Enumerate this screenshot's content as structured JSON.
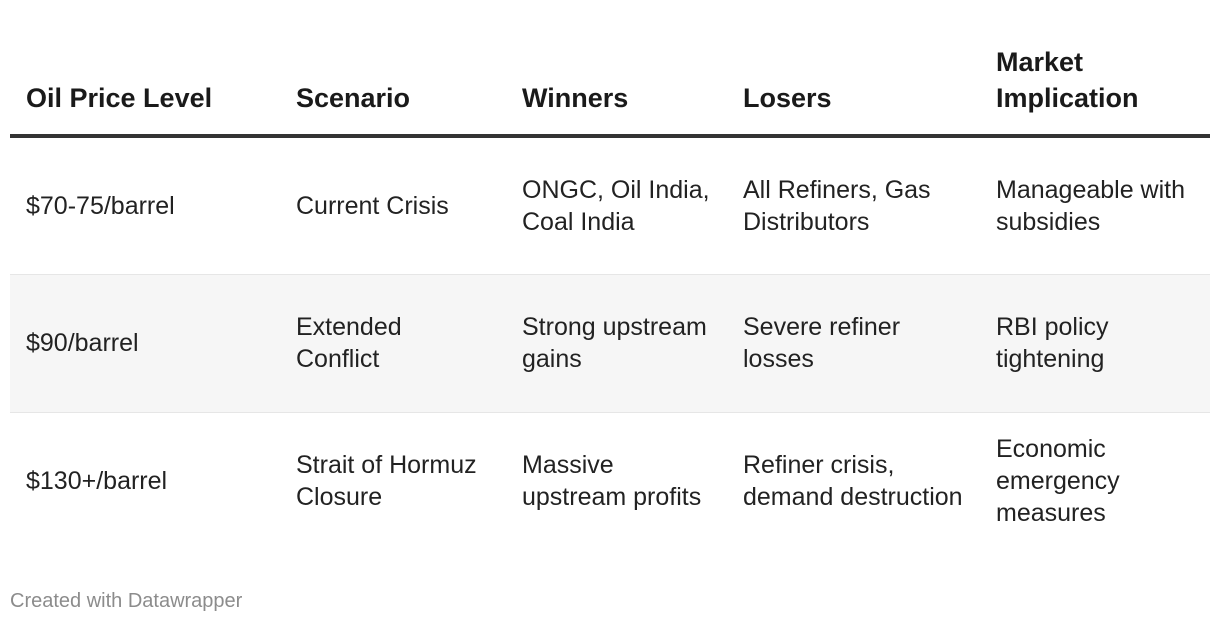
{
  "table": {
    "headers": [
      "Oil Price Level",
      "Scenario",
      "Winners",
      "Losers",
      "Market Implication"
    ],
    "rows": [
      [
        "$70-75/barrel",
        "Current Crisis",
        "ONGC, Oil India, Coal India",
        "All Refiners, Gas Distributors",
        "Manageable with subsidies"
      ],
      [
        "$90/barrel",
        "Extended Conflict",
        "Strong upstream gains",
        "Severe refiner losses",
        "RBI policy tightening"
      ],
      [
        "$130+/barrel",
        "Strait of Hormuz Closure",
        "Massive upstream profits",
        "Refiner crisis, demand destruction",
        "Economic emergency measures"
      ]
    ]
  },
  "footer": {
    "credit": "Created with Datawrapper"
  }
}
